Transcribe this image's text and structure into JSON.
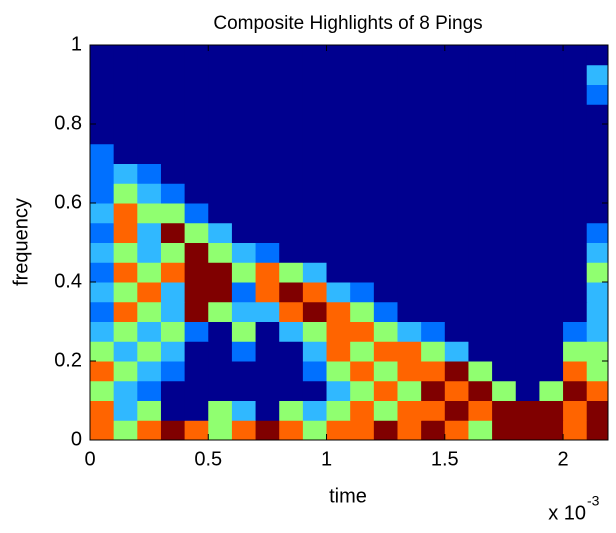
{
  "chart_data": {
    "type": "heatmap",
    "title": "Composite Highlights of 8 Pings",
    "x_label": "time",
    "y_label": "frequency",
    "x_multiplier": "x 10",
    "x_multiplier_exponent": "-3",
    "xlim": [
      0,
      2.19
    ],
    "ylim": [
      0,
      1
    ],
    "xticks": [
      0,
      0.5,
      1,
      1.5,
      2
    ],
    "yticks": [
      0,
      0.2,
      0.4,
      0.6,
      0.8,
      1
    ],
    "x_edges": [
      0,
      0.1,
      0.2,
      0.3,
      0.4,
      0.5,
      0.6,
      0.7,
      0.8,
      0.9,
      1,
      1.1,
      1.2,
      1.3,
      1.4,
      1.5,
      1.6,
      1.7,
      1.8,
      1.9,
      2,
      2.1,
      2.19
    ],
    "y_edges": [
      0,
      0.05,
      0.1,
      0.15,
      0.2,
      0.25,
      0.3,
      0.35,
      0.4,
      0.45,
      0.5,
      0.55,
      0.6,
      0.65,
      0.7,
      0.75,
      0.8,
      0.85,
      0.9,
      0.95,
      1
    ],
    "colors": [
      "#00008f",
      "#0070ff",
      "#30b8ff",
      "#90ff70",
      "#ff6400",
      "#800000"
    ],
    "z": [
      [
        4,
        3,
        4,
        5,
        4,
        3,
        4,
        5,
        4,
        3,
        4,
        4,
        5,
        4,
        5,
        4,
        3,
        5,
        5,
        5,
        4,
        5
      ],
      [
        4,
        2,
        3,
        0,
        0,
        3,
        2,
        0,
        3,
        2,
        3,
        4,
        3,
        4,
        4,
        5,
        4,
        5,
        5,
        5,
        4,
        5
      ],
      [
        3,
        2,
        1,
        0,
        0,
        0,
        0,
        0,
        0,
        0,
        2,
        3,
        4,
        3,
        5,
        4,
        5,
        3,
        0,
        3,
        5,
        4
      ],
      [
        4,
        3,
        2,
        1,
        0,
        0,
        0,
        0,
        0,
        1,
        3,
        4,
        3,
        4,
        4,
        5,
        3,
        0,
        0,
        0,
        4,
        3
      ],
      [
        3,
        2,
        3,
        2,
        0,
        0,
        1,
        0,
        0,
        2,
        4,
        3,
        4,
        4,
        3,
        2,
        0,
        0,
        0,
        0,
        3,
        3
      ],
      [
        2,
        3,
        2,
        3,
        1,
        0,
        3,
        0,
        2,
        3,
        4,
        4,
        3,
        2,
        1,
        0,
        0,
        0,
        0,
        0,
        1,
        2
      ],
      [
        1,
        4,
        3,
        2,
        5,
        3,
        2,
        2,
        4,
        5,
        4,
        3,
        1,
        0,
        0,
        0,
        0,
        0,
        0,
        0,
        0,
        2
      ],
      [
        2,
        3,
        4,
        2,
        5,
        5,
        1,
        4,
        5,
        4,
        2,
        1,
        0,
        0,
        0,
        0,
        0,
        0,
        0,
        0,
        0,
        2
      ],
      [
        1,
        4,
        3,
        4,
        5,
        5,
        3,
        4,
        3,
        2,
        0,
        0,
        0,
        0,
        0,
        0,
        0,
        0,
        0,
        0,
        0,
        3
      ],
      [
        2,
        3,
        2,
        3,
        5,
        3,
        2,
        1,
        0,
        0,
        0,
        0,
        0,
        0,
        0,
        0,
        0,
        0,
        0,
        0,
        0,
        2
      ],
      [
        1,
        4,
        2,
        5,
        3,
        2,
        0,
        0,
        0,
        0,
        0,
        0,
        0,
        0,
        0,
        0,
        0,
        0,
        0,
        0,
        0,
        1
      ],
      [
        2,
        4,
        3,
        3,
        1,
        0,
        0,
        0,
        0,
        0,
        0,
        0,
        0,
        0,
        0,
        0,
        0,
        0,
        0,
        0,
        0,
        0
      ],
      [
        1,
        3,
        2,
        1,
        0,
        0,
        0,
        0,
        0,
        0,
        0,
        0,
        0,
        0,
        0,
        0,
        0,
        0,
        0,
        0,
        0,
        0
      ],
      [
        1,
        2,
        1,
        0,
        0,
        0,
        0,
        0,
        0,
        0,
        0,
        0,
        0,
        0,
        0,
        0,
        0,
        0,
        0,
        0,
        0,
        0
      ],
      [
        1,
        0,
        0,
        0,
        0,
        0,
        0,
        0,
        0,
        0,
        0,
        0,
        0,
        0,
        0,
        0,
        0,
        0,
        0,
        0,
        0,
        0
      ],
      [
        0,
        0,
        0,
        0,
        0,
        0,
        0,
        0,
        0,
        0,
        0,
        0,
        0,
        0,
        0,
        0,
        0,
        0,
        0,
        0,
        0,
        0
      ],
      [
        0,
        0,
        0,
        0,
        0,
        0,
        0,
        0,
        0,
        0,
        0,
        0,
        0,
        0,
        0,
        0,
        0,
        0,
        0,
        0,
        0,
        0
      ],
      [
        0,
        0,
        0,
        0,
        0,
        0,
        0,
        0,
        0,
        0,
        0,
        0,
        0,
        0,
        0,
        0,
        0,
        0,
        0,
        0,
        0,
        1
      ],
      [
        0,
        0,
        0,
        0,
        0,
        0,
        0,
        0,
        0,
        0,
        0,
        0,
        0,
        0,
        0,
        0,
        0,
        0,
        0,
        0,
        0,
        2
      ],
      [
        0,
        0,
        0,
        0,
        0,
        0,
        0,
        0,
        0,
        0,
        0,
        0,
        0,
        0,
        0,
        0,
        0,
        0,
        0,
        0,
        0,
        0
      ]
    ]
  }
}
